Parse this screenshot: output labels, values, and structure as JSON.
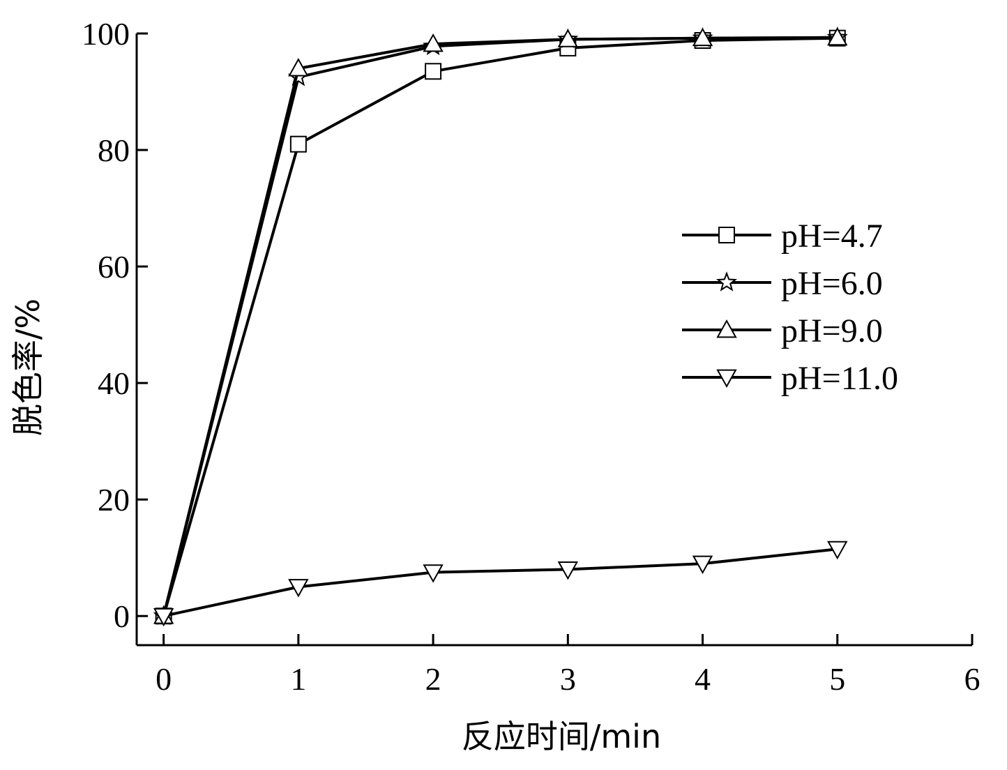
{
  "chart_data": {
    "type": "line",
    "title": "",
    "xlabel": "反应时间/min",
    "ylabel": "脱色率/%",
    "xlim": [
      -0.2,
      6
    ],
    "ylim": [
      -5,
      100
    ],
    "x_ticks": [
      "0",
      "1",
      "2",
      "3",
      "4",
      "5",
      "6"
    ],
    "y_ticks": [
      "0",
      "20",
      "40",
      "60",
      "80",
      "100"
    ],
    "grid": false,
    "legend_position": "right",
    "series": [
      {
        "name": "pH=4.7",
        "marker": "square",
        "x": [
          0,
          1,
          2,
          3,
          4,
          5
        ],
        "values": [
          0,
          81,
          93.5,
          97.5,
          98.8,
          99.2
        ]
      },
      {
        "name": "pH=6.0",
        "marker": "star",
        "x": [
          0,
          1,
          2,
          3,
          4,
          5
        ],
        "values": [
          0,
          92.5,
          97.8,
          99,
          99.2,
          99.3
        ]
      },
      {
        "name": "pH=9.0",
        "marker": "triangle-up",
        "x": [
          0,
          1,
          2,
          3,
          4,
          5
        ],
        "values": [
          0,
          94,
          98.2,
          99,
          99.2,
          99.3
        ]
      },
      {
        "name": "pH=11.0",
        "marker": "triangle-down",
        "x": [
          0,
          1,
          2,
          3,
          4,
          5
        ],
        "values": [
          0,
          5,
          7.5,
          8,
          9,
          11.5
        ]
      }
    ],
    "colors": {
      "line": "#000000",
      "marker_fill": "#ffffff"
    }
  }
}
